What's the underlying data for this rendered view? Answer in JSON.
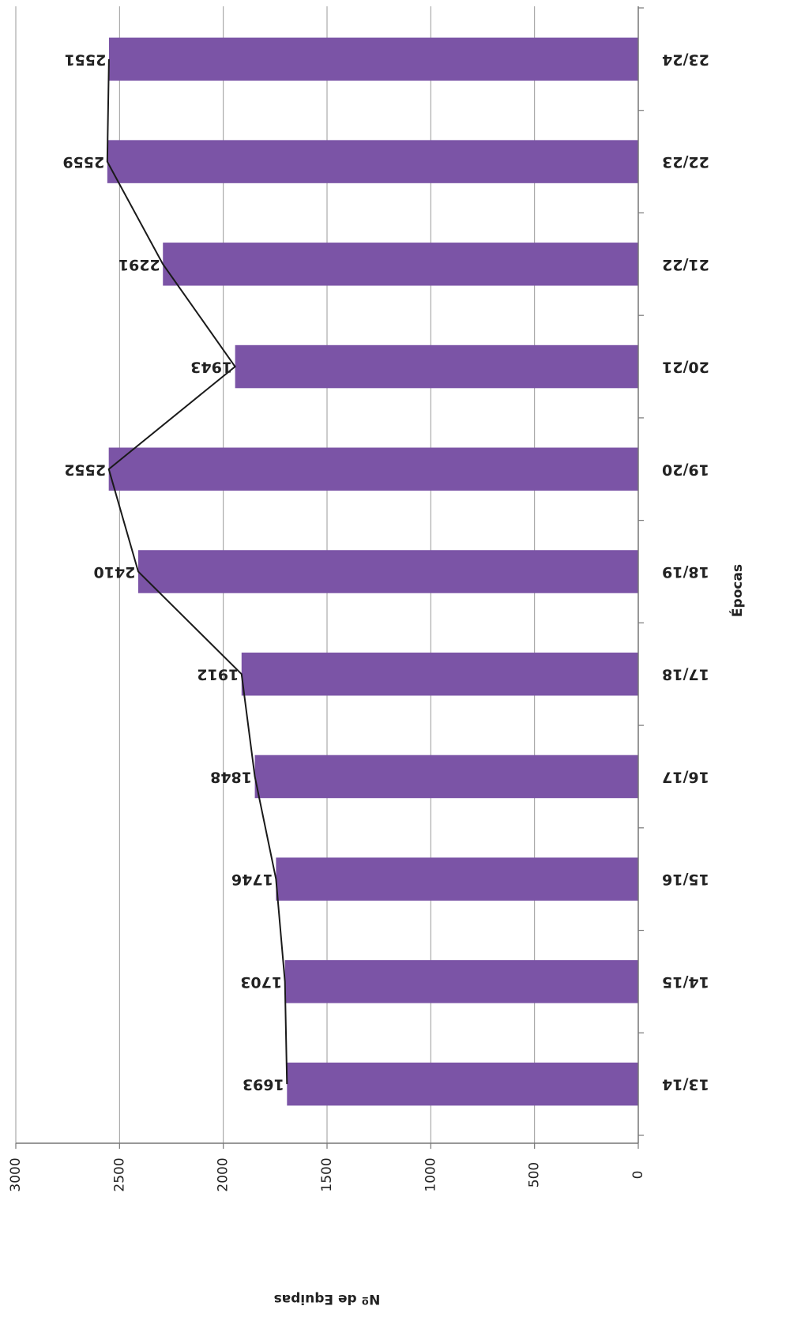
{
  "chart_data": {
    "type": "bar",
    "orientation": "vertical",
    "image_rotation_degrees": 90,
    "xlabel": "Épocas",
    "ylabel": "Nº de Equipas",
    "ylim": [
      0,
      3000
    ],
    "yticks": [
      0,
      500,
      1000,
      1500,
      2000,
      2500,
      3000
    ],
    "grid": true,
    "legend": "none",
    "categories": [
      "13/14",
      "14/15",
      "15/16",
      "16/17",
      "17/18",
      "18/19",
      "19/20",
      "20/21",
      "21/22",
      "22/23",
      "23/24"
    ],
    "series": [
      {
        "type": "bar",
        "values": [
          1693,
          1703,
          1746,
          1848,
          1912,
          2410,
          2552,
          1943,
          2291,
          2559,
          2551
        ],
        "color": "#7b54a6"
      },
      {
        "type": "line",
        "values": [
          1693,
          1703,
          1746,
          1848,
          1912,
          2410,
          2552,
          1943,
          2291,
          2559,
          2551
        ],
        "color": "#1a1a1a"
      }
    ],
    "data_labels": [
      "1693",
      "1703",
      "1746",
      "1848",
      "1912",
      "2410",
      "2552",
      "1943",
      "2291",
      "2559",
      "2551"
    ],
    "ytick_labels": [
      "0",
      "500",
      "1000",
      "1500",
      "2000",
      "2500",
      "3000"
    ]
  }
}
